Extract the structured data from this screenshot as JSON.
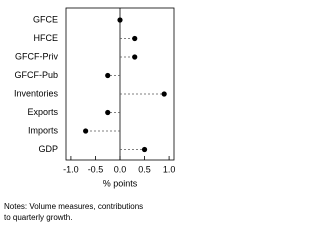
{
  "chart_data": {
    "type": "dot",
    "categories": [
      "GFCE",
      "HFCE",
      "GFCF-Priv",
      "GFCF-Pub",
      "Inventories",
      "Exports",
      "Imports",
      "GDP"
    ],
    "values": [
      0.0,
      0.3,
      0.3,
      -0.25,
      0.9,
      -0.25,
      -0.7,
      0.5
    ],
    "color": "#000000",
    "xlabel": "% points",
    "xlim": [
      -1.1,
      1.1
    ],
    "xticks": [
      {
        "value": -1,
        "label": "-1.0"
      },
      {
        "value": -0.5,
        "label": "-0.5"
      },
      {
        "value": 0,
        "label": "0.0"
      },
      {
        "value": 0.5,
        "label": "0.5"
      },
      {
        "value": 1,
        "label": "1.0"
      }
    ],
    "note": [
      "Notes: Volume measures, contributions",
      "to quarterly growth."
    ]
  }
}
